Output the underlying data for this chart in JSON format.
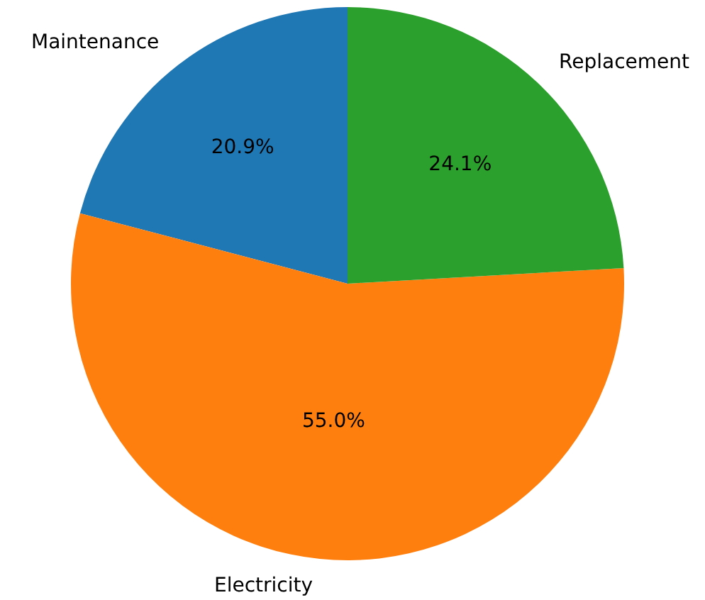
{
  "chart_data": {
    "type": "pie",
    "categories": [
      "Maintenance",
      "Electricity",
      "Replacement"
    ],
    "values": [
      20.9,
      55.0,
      24.1
    ],
    "colors": [
      "#1f77b4",
      "#ff7f0e",
      "#2ca02c"
    ],
    "value_labels": [
      "20.9%",
      "55.0%",
      "24.1%"
    ],
    "legend": false
  }
}
